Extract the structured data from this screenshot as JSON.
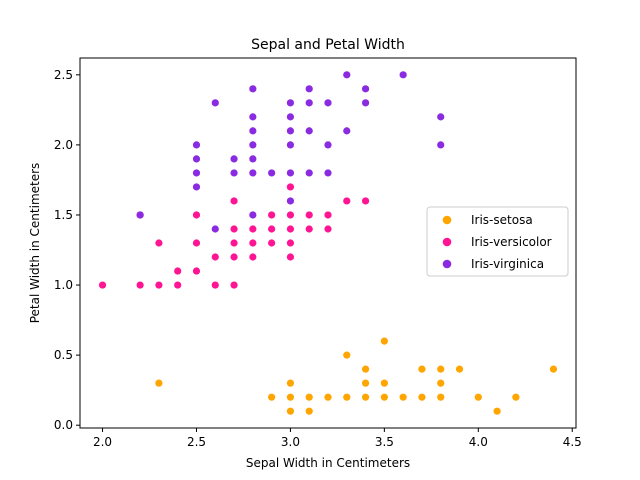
{
  "chart_data": {
    "type": "scatter",
    "title": "Sepal and Petal Width",
    "xlabel": "Sepal Width in Centimeters",
    "ylabel": "Petal Width in Centimeters",
    "xlim": [
      1.88,
      4.52
    ],
    "ylim": [
      -0.02,
      2.62
    ],
    "xticks": [
      2.0,
      2.5,
      3.0,
      3.5,
      4.0,
      4.5
    ],
    "xtick_labels": [
      "2.0",
      "2.5",
      "3.0",
      "3.5",
      "4.0",
      "4.5"
    ],
    "yticks": [
      0.0,
      0.5,
      1.0,
      1.5,
      2.0,
      2.5
    ],
    "ytick_labels": [
      "0.0",
      "0.5",
      "1.0",
      "1.5",
      "2.0",
      "2.5"
    ],
    "grid": false,
    "legend": "center-right",
    "series": [
      {
        "name": "Iris-setosa",
        "color": "#ffa500",
        "points": [
          [
            2.3,
            0.3
          ],
          [
            2.9,
            0.2
          ],
          [
            3.0,
            0.1
          ],
          [
            3.0,
            0.2
          ],
          [
            3.0,
            0.3
          ],
          [
            3.1,
            0.1
          ],
          [
            3.1,
            0.2
          ],
          [
            3.2,
            0.2
          ],
          [
            3.3,
            0.2
          ],
          [
            3.3,
            0.5
          ],
          [
            3.4,
            0.2
          ],
          [
            3.4,
            0.3
          ],
          [
            3.4,
            0.4
          ],
          [
            3.5,
            0.2
          ],
          [
            3.5,
            0.3
          ],
          [
            3.5,
            0.6
          ],
          [
            3.6,
            0.2
          ],
          [
            3.7,
            0.2
          ],
          [
            3.7,
            0.4
          ],
          [
            3.8,
            0.2
          ],
          [
            3.8,
            0.3
          ],
          [
            3.8,
            0.4
          ],
          [
            3.9,
            0.4
          ],
          [
            4.0,
            0.2
          ],
          [
            4.1,
            0.1
          ],
          [
            4.2,
            0.2
          ],
          [
            4.4,
            0.4
          ]
        ]
      },
      {
        "name": "Iris-versicolor",
        "color": "#ff1493",
        "points": [
          [
            2.0,
            1.0
          ],
          [
            2.2,
            1.0
          ],
          [
            2.2,
            1.5
          ],
          [
            2.3,
            1.0
          ],
          [
            2.3,
            1.3
          ],
          [
            2.4,
            1.0
          ],
          [
            2.4,
            1.1
          ],
          [
            2.5,
            1.1
          ],
          [
            2.5,
            1.3
          ],
          [
            2.5,
            1.5
          ],
          [
            2.6,
            1.0
          ],
          [
            2.6,
            1.2
          ],
          [
            2.7,
            1.0
          ],
          [
            2.7,
            1.2
          ],
          [
            2.7,
            1.3
          ],
          [
            2.7,
            1.4
          ],
          [
            2.7,
            1.6
          ],
          [
            2.8,
            1.2
          ],
          [
            2.8,
            1.3
          ],
          [
            2.8,
            1.4
          ],
          [
            2.9,
            1.3
          ],
          [
            2.9,
            1.4
          ],
          [
            2.9,
            1.5
          ],
          [
            3.0,
            1.2
          ],
          [
            3.0,
            1.3
          ],
          [
            3.0,
            1.4
          ],
          [
            3.0,
            1.5
          ],
          [
            3.0,
            1.7
          ],
          [
            3.1,
            1.4
          ],
          [
            3.1,
            1.5
          ],
          [
            3.2,
            1.4
          ],
          [
            3.2,
            1.5
          ],
          [
            3.3,
            1.6
          ],
          [
            3.4,
            1.6
          ]
        ]
      },
      {
        "name": "Iris-virginica",
        "color": "#8a2be2",
        "points": [
          [
            2.2,
            1.5
          ],
          [
            2.5,
            1.7
          ],
          [
            2.5,
            1.8
          ],
          [
            2.5,
            1.9
          ],
          [
            2.5,
            2.0
          ],
          [
            2.6,
            1.4
          ],
          [
            2.6,
            2.3
          ],
          [
            2.7,
            1.8
          ],
          [
            2.7,
            1.9
          ],
          [
            2.8,
            1.5
          ],
          [
            2.8,
            1.8
          ],
          [
            2.8,
            1.9
          ],
          [
            2.8,
            2.0
          ],
          [
            2.8,
            2.1
          ],
          [
            2.8,
            2.2
          ],
          [
            2.8,
            2.4
          ],
          [
            2.9,
            1.8
          ],
          [
            3.0,
            1.6
          ],
          [
            3.0,
            1.8
          ],
          [
            3.0,
            2.0
          ],
          [
            3.0,
            2.1
          ],
          [
            3.0,
            2.2
          ],
          [
            3.0,
            2.3
          ],
          [
            3.1,
            1.8
          ],
          [
            3.1,
            2.1
          ],
          [
            3.1,
            2.3
          ],
          [
            3.1,
            2.4
          ],
          [
            3.2,
            1.8
          ],
          [
            3.2,
            2.0
          ],
          [
            3.2,
            2.3
          ],
          [
            3.3,
            2.1
          ],
          [
            3.3,
            2.5
          ],
          [
            3.4,
            2.3
          ],
          [
            3.4,
            2.4
          ],
          [
            3.6,
            2.5
          ],
          [
            3.8,
            2.0
          ],
          [
            3.8,
            2.2
          ]
        ]
      }
    ]
  }
}
